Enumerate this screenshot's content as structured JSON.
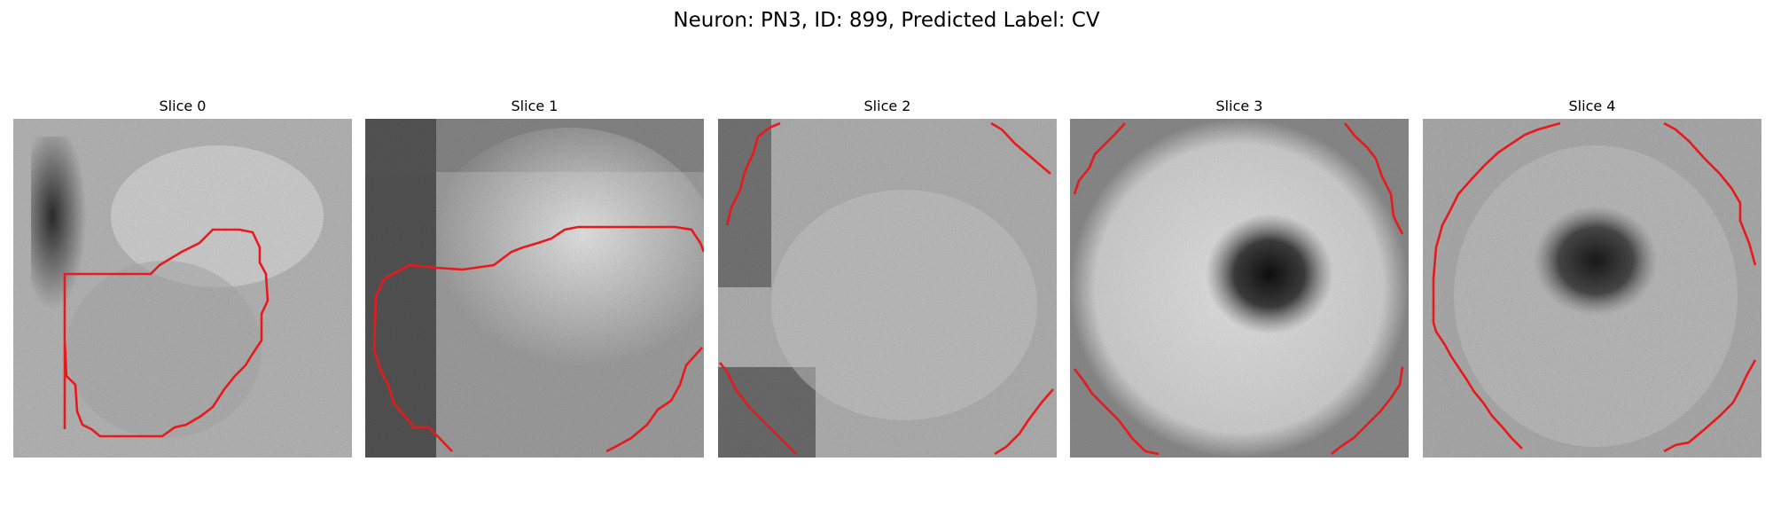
{
  "figure": {
    "title": "Neuron: PN3, ID: 899, Predicted Label: CV"
  },
  "panels": [
    {
      "title": "Slice 0"
    },
    {
      "title": "Slice 1"
    },
    {
      "title": "Slice 2"
    },
    {
      "title": "Slice 3"
    },
    {
      "title": "Slice 4"
    }
  ],
  "colors": {
    "contour": "#e8191c",
    "background": "#ffffff"
  }
}
